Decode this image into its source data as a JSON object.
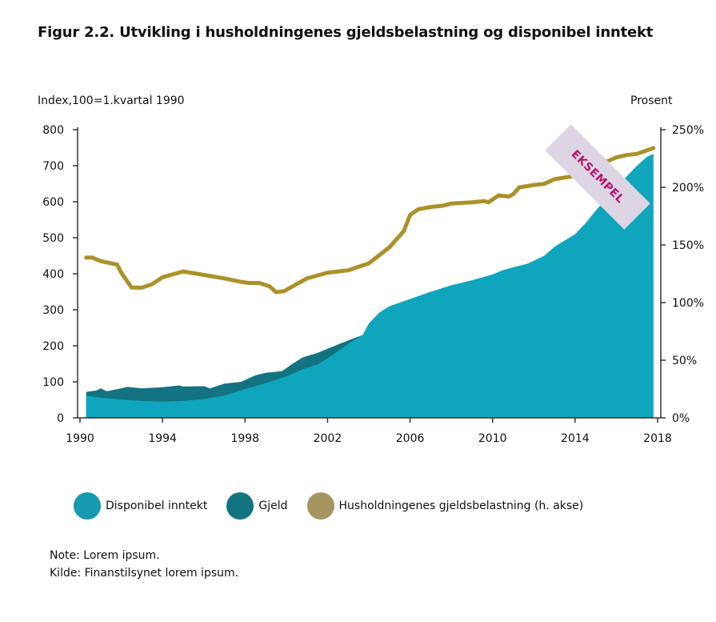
{
  "title": "Figur 2.2. Utvikling i husholdningenes gjeldsbelastning og disponibel inntekt",
  "stamp": "EKSEMPEL",
  "notes": [
    "Note: Lorem ipsum.",
    "Kilde: Finanstilsynet lorem ipsum."
  ],
  "colors": {
    "disponibel": "#0fa5bd",
    "gjeld": "#137381",
    "gjeldsbelastning": "#ab9129",
    "stamp_bg": "#ddd5e3",
    "stamp_text": "#b5136c"
  },
  "chart_data": {
    "type": "area",
    "title": "Figur 2.2. Utvikling i husholdningenes gjeldsbelastning og disponibel inntekt",
    "ylabel": "Index,100=1.kvartal 1990",
    "y2label": "Prosent",
    "xlim": [
      1990,
      2018
    ],
    "ylim": [
      0,
      800
    ],
    "y2lim": [
      0,
      250
    ],
    "xticks": [
      "1990",
      "1994",
      "1998",
      "2002",
      "2006",
      "2010",
      "2014",
      "2018"
    ],
    "yticks": [
      "0",
      "100",
      "200",
      "300",
      "400",
      "500",
      "600",
      "700",
      "800"
    ],
    "y2ticks": [
      "0%",
      "50%",
      "100%",
      "150%",
      "200%",
      "250%"
    ],
    "grid": false,
    "legend_position": "bottom",
    "series": [
      {
        "name": "Gjeld",
        "type": "area",
        "axis": "left",
        "x": [
          1990.3,
          1990.8,
          1991,
          1991.3,
          1992,
          1992.3,
          1993,
          1994,
          1994.8,
          1995,
          1996,
          1996.3,
          1997,
          1997.8,
          1998.5,
          1999,
          1999.8,
          2000.3,
          2000.8,
          2001.5,
          2002,
          2003,
          2003.7
        ],
        "y": [
          72,
          76,
          82,
          74,
          82,
          86,
          82,
          85,
          90,
          87,
          88,
          82,
          95,
          100,
          118,
          125,
          130,
          150,
          168,
          180,
          192,
          215,
          230
        ]
      },
      {
        "name": "Disponibel inntekt",
        "type": "area",
        "axis": "left",
        "x": [
          1990.3,
          1991,
          1992,
          1993,
          1994,
          1995,
          1996,
          1997,
          1998,
          1999,
          2000,
          2000.8,
          2001.5,
          2002,
          2003,
          2003.7,
          2004,
          2004.5,
          2005,
          2006,
          2007,
          2008,
          2009,
          2010,
          2010.5,
          2011,
          2011.7,
          2012.5,
          2013,
          2014,
          2014.5,
          2015,
          2016,
          2016.5,
          2017,
          2017.5,
          2017.8
        ],
        "y": [
          62,
          56,
          51,
          47,
          45,
          47,
          52,
          62,
          80,
          96,
          115,
          135,
          148,
          165,
          205,
          230,
          262,
          292,
          310,
          330,
          350,
          368,
          382,
          398,
          410,
          418,
          428,
          450,
          475,
          510,
          540,
          575,
          640,
          670,
          700,
          725,
          733
        ]
      },
      {
        "name": "Husholdningenes gjeldsbelastning (h. akse)",
        "type": "line",
        "axis": "right",
        "x": [
          1990.3,
          1990.6,
          1991,
          1991.8,
          1992,
          1992.5,
          1993,
          1993.5,
          1994,
          1995,
          1996,
          1997,
          1997.8,
          1998.2,
          1998.7,
          1999.2,
          1999.5,
          1999.9,
          2001,
          2002,
          2003,
          2004,
          2005,
          2005.7,
          2006,
          2006.4,
          2007,
          2007.6,
          2008,
          2009,
          2009.6,
          2009.8,
          2010.3,
          2010.8,
          2011,
          2011.3,
          2012,
          2012.5,
          2013,
          2014,
          2015,
          2015.5,
          2016,
          2016.5,
          2017,
          2017.8
        ],
        "y": [
          139,
          139,
          136,
          133,
          126,
          113,
          113,
          116,
          122,
          127,
          124,
          121,
          118,
          117,
          117,
          114,
          109,
          110,
          121,
          126,
          128,
          134,
          148,
          162,
          176,
          181,
          183,
          184,
          186,
          187,
          188,
          187,
          193,
          192,
          194,
          200,
          202,
          203,
          207,
          210,
          217,
          222,
          226,
          228,
          229,
          234
        ]
      }
    ]
  },
  "legend": [
    "Disponibel inntekt",
    "Gjeld",
    "Husholdningenes gjeldsbelastning (h. akse)"
  ]
}
